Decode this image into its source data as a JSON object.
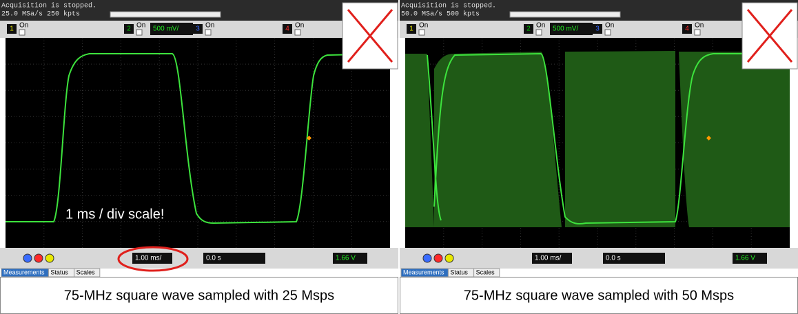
{
  "panels": [
    {
      "status": "Acquisition is stopped.",
      "rate": "25.0 MSa/s  250 kpts",
      "channels": [
        {
          "num": "1",
          "state": "On"
        },
        {
          "num": "2",
          "state": "On",
          "scale": "500 mV/"
        },
        {
          "num": "3",
          "state": "On"
        },
        {
          "num": "4",
          "state": "On"
        }
      ],
      "timebase": "1.00 ms/",
      "delay": "0.0 s",
      "trigger": "1.66 V",
      "tabs": [
        "Measurements",
        "Status",
        "Scales"
      ],
      "annotation": "1 ms / div scale!",
      "caption": "75-MHz square wave sampled with 25 Msps"
    },
    {
      "status": "Acquisition is stopped.",
      "rate": "50.0 MSa/s  500 kpts",
      "channels": [
        {
          "num": "1",
          "state": "On"
        },
        {
          "num": "2",
          "state": "On",
          "scale": "500 mV/"
        },
        {
          "num": "3",
          "state": "On"
        },
        {
          "num": "4",
          "state": "On"
        }
      ],
      "timebase": "1.00 ms/",
      "delay": "0.0 s",
      "trigger": "1.66 V",
      "tabs": [
        "Measurements",
        "Status",
        "Scales"
      ],
      "caption": "75-MHz square wave sampled with 50 Msps"
    }
  ]
}
